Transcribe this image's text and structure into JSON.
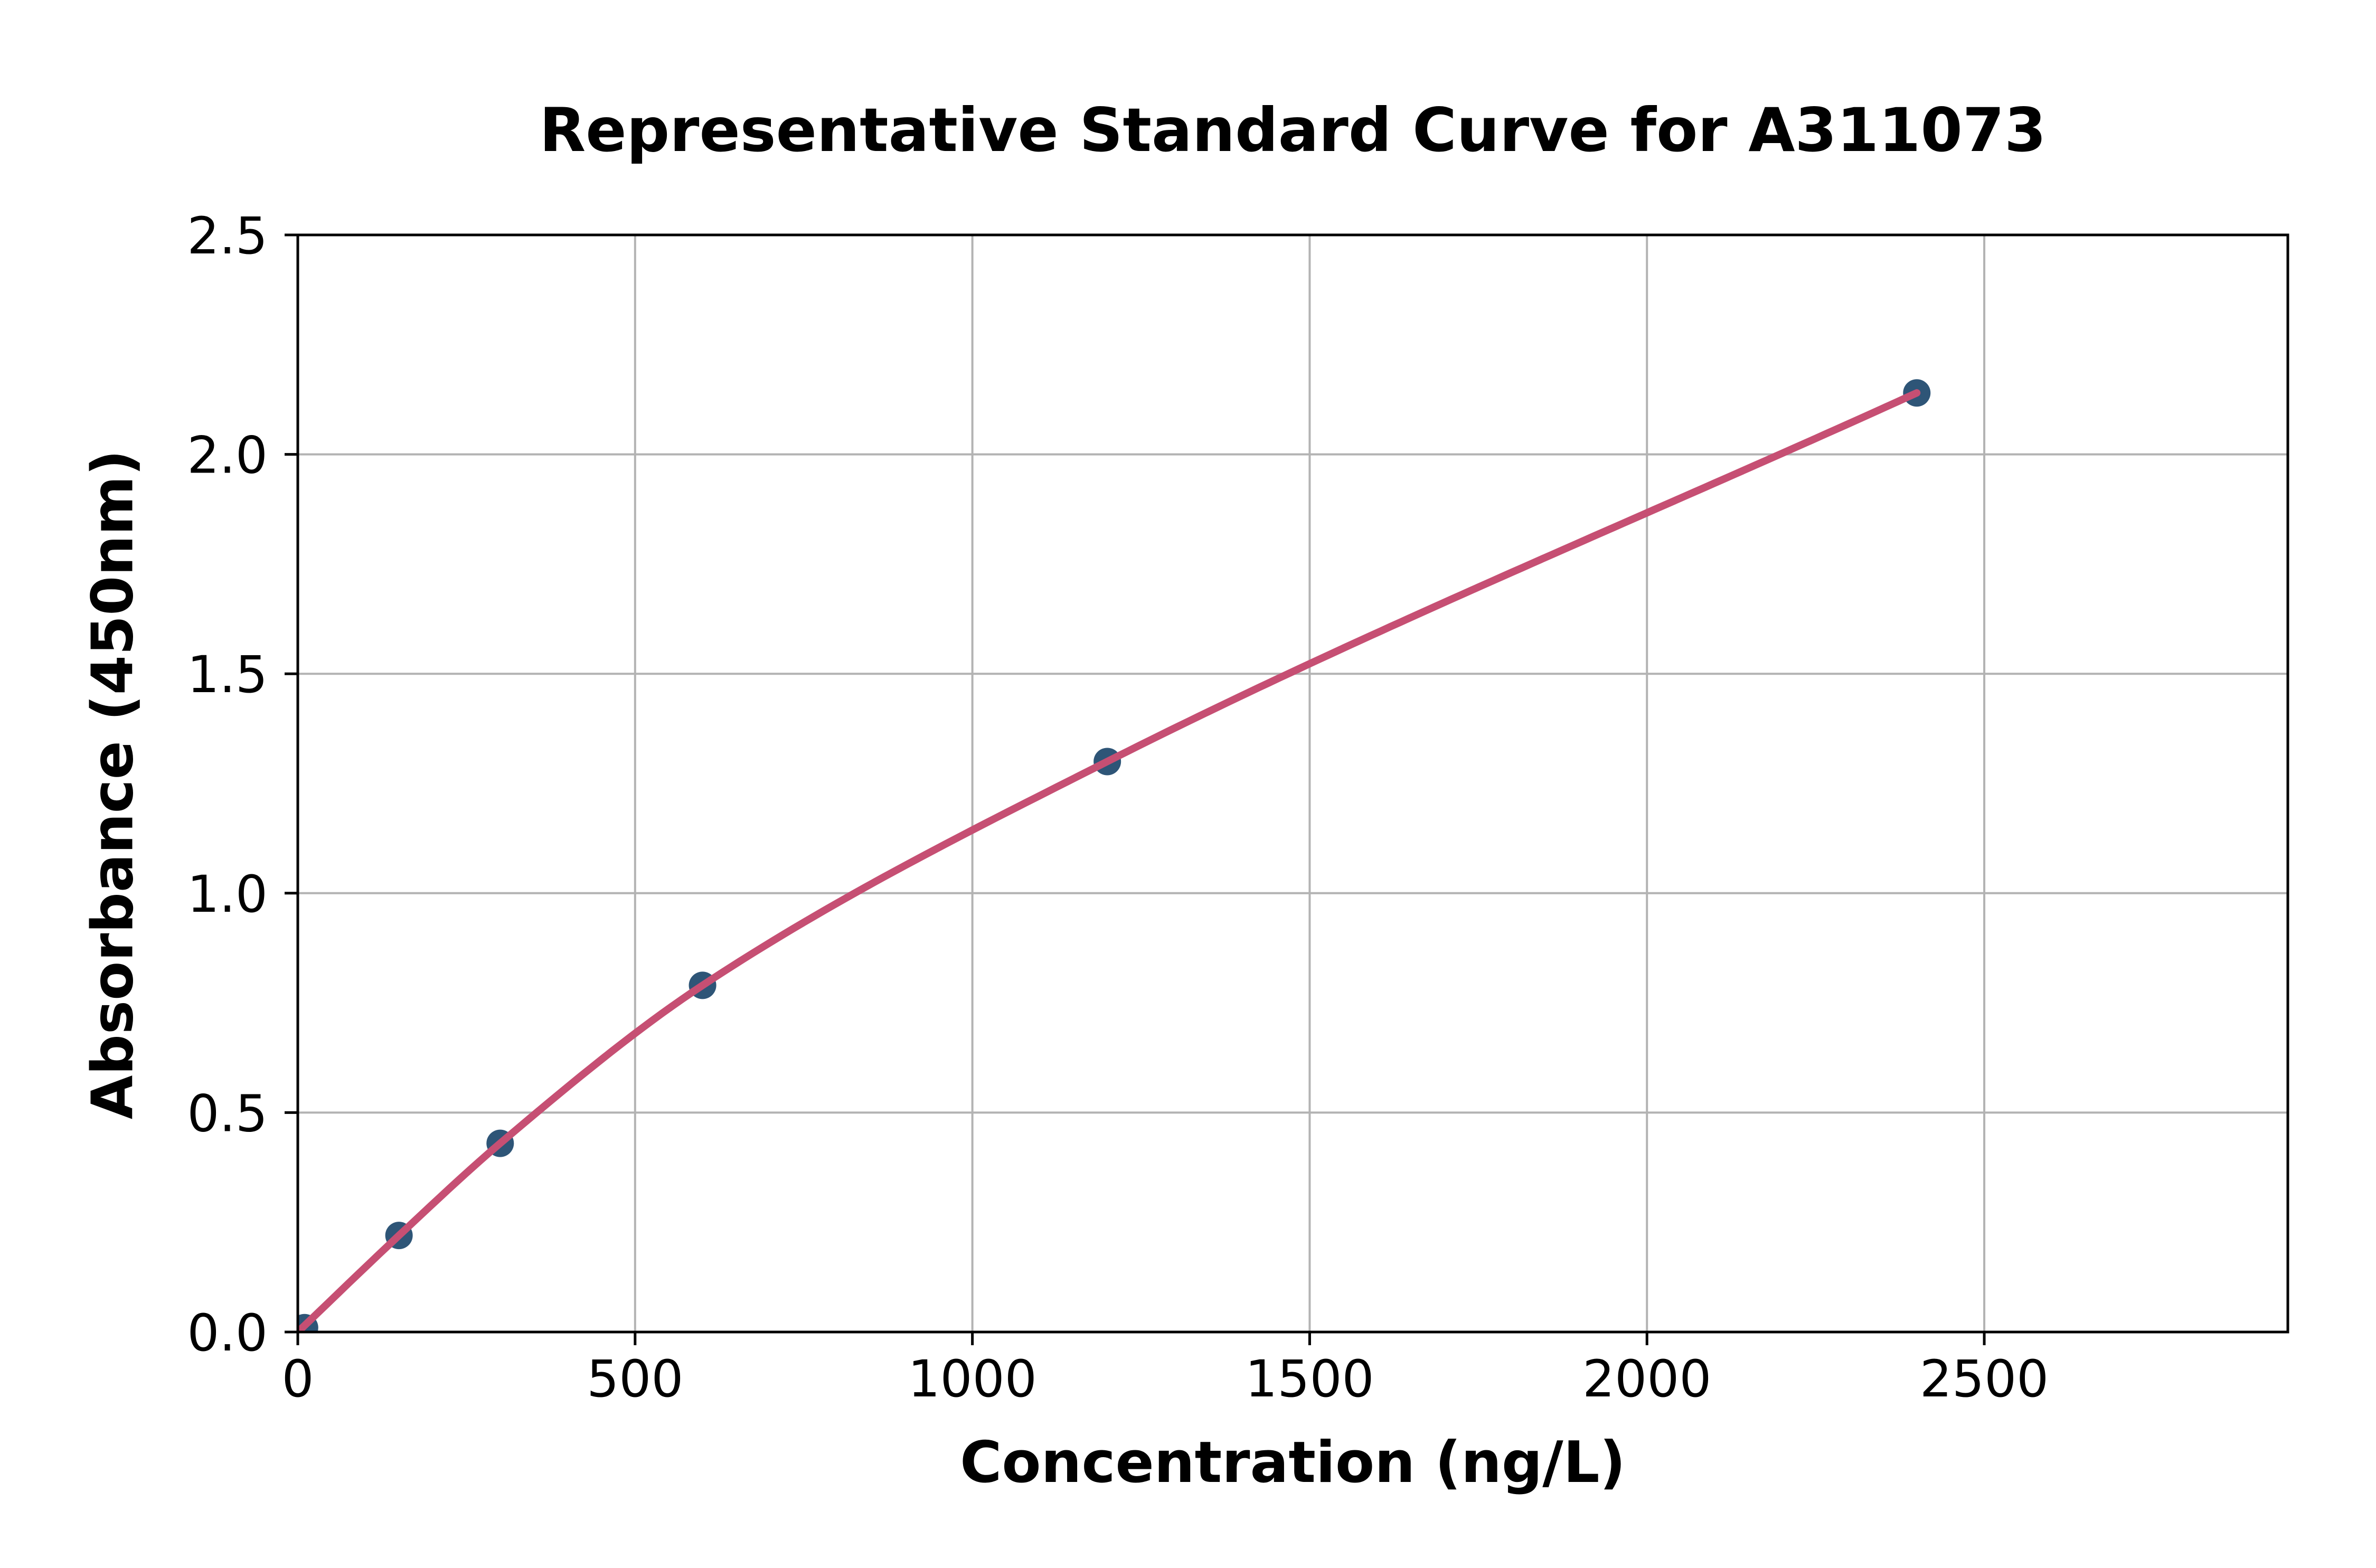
{
  "figure": {
    "background": "#ffffff"
  },
  "chart_data": {
    "type": "scatter",
    "title": "Representative Standard Curve for A311073",
    "xlabel": "Concentration (ng/L)",
    "ylabel": "Absorbance (450nm)",
    "xlim": [
      0,
      2950
    ],
    "ylim": [
      0,
      2.5
    ],
    "x_ticks": {
      "values": [
        0,
        500,
        1000,
        1500,
        2000,
        2500
      ],
      "labels": [
        "0",
        "500",
        "1000",
        "1500",
        "2000",
        "2500"
      ]
    },
    "y_ticks": {
      "values": [
        0,
        0.5,
        1.0,
        1.5,
        2.0,
        2.5
      ],
      "labels": [
        "0.0",
        "0.5",
        "1.0",
        "1.5",
        "2.0",
        "2.5"
      ]
    },
    "grid": true,
    "legend": false,
    "series": [
      {
        "name": "standard points",
        "type": "scatter",
        "color": "#2e5577",
        "marker": "circle",
        "marker_radius": 26,
        "x": [
          10,
          150,
          300,
          600,
          1200,
          2400
        ],
        "y": [
          0.01,
          0.22,
          0.43,
          0.79,
          1.3,
          2.14
        ]
      },
      {
        "name": "fitted curve",
        "type": "line",
        "color": "#c64f73",
        "line_width": 14,
        "smooth": true,
        "x": [
          0,
          150,
          300,
          600,
          1200,
          2400
        ],
        "y": [
          0.0,
          0.22,
          0.43,
          0.79,
          1.3,
          2.14
        ]
      }
    ],
    "style": {
      "grid_color": "#b3b3b3",
      "axis_color": "#000000",
      "text_color": "#000000",
      "background": "#ffffff"
    }
  }
}
